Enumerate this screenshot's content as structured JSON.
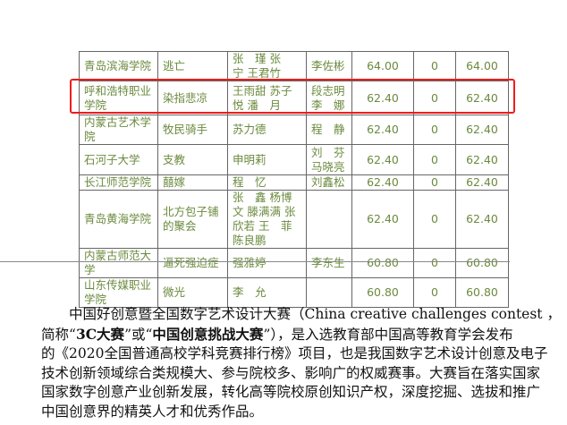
{
  "table": {
    "rows": [
      {
        "school": "青岛滨海学院",
        "work": "逃亡",
        "authors": "张　瑾 张　宁 王君竹",
        "advisor": "李佐彬",
        "score1": "64.00",
        "score2": "0",
        "total": "64.00",
        "h": 30
      },
      {
        "school": "呼和浩特职业学院",
        "work": "染指悲凉",
        "authors": "王雨甜 苏子悦 潘　月",
        "advisor": "段志明 李　娜",
        "score1": "62.40",
        "score2": "0",
        "total": "62.40",
        "h": 38,
        "highlighted": true
      },
      {
        "school": "内蒙古艺术学院",
        "work": "牧民骑手",
        "authors": "苏力德",
        "advisor": "程　静",
        "score1": "62.40",
        "score2": "0",
        "total": "62.40",
        "h": 16
      },
      {
        "school": "石河子大学",
        "work": "支教",
        "authors": "申明莉",
        "advisor": "刘　芬 马晓亮",
        "score1": "62.40",
        "score2": "0",
        "total": "62.40",
        "h": 34
      },
      {
        "school": "长江师范学院",
        "work": "囍嫁",
        "authors": "程　忆",
        "advisor": "刘鑫松",
        "score1": "62.40",
        "score2": "0",
        "total": "62.40",
        "h": 16
      },
      {
        "school": "青岛黄海学院",
        "work": "北方包子铺的聚会",
        "authors": "张　鑫 杨博文 滕满满 张欣若 王　菲 陈良鹏",
        "advisor": "",
        "score1": "62.40",
        "score2": "0",
        "total": "62.40",
        "h": 51
      },
      {
        "school": "内蒙古师范大学",
        "work": "逼死强迫症",
        "authors": "强雅婷",
        "advisor": "李东生",
        "score1": "60.80",
        "score2": "0",
        "total": "60.80",
        "h": 17
      },
      {
        "school": "山东传媒职业学院",
        "work": "微光",
        "authors": "李　允",
        "advisor": "",
        "score1": "60.80",
        "score2": "0",
        "total": "60.80",
        "h": 33
      }
    ],
    "highlight_color": "#ee1c1c",
    "text_color": "#6b8a3e"
  },
  "paragraph": {
    "line1": "　　中国好创意暨全国数字艺术设计大赛（China creative challenges contest ，",
    "line2_a": "简称“",
    "line2_b": "3C大赛",
    "line2_c": "”或“",
    "line2_d": "中国创意挑战大赛",
    "line2_e": "”），是入选教育部中国高等教育学会发布",
    "line3": "的《2020全国普通高校学科竞赛排行榜》项目，也是我国数字艺术设计创意及电子",
    "line4": "技术创新领域综合类规模大、参与院校多、影响广的权威赛事。大赛旨在落实国家",
    "line5": "国家数字创意产业创新发展，转化高等院校原创知识产权，深度挖掘、选拔和推广",
    "line6": "中国创意界的精英人才和优秀作品。"
  }
}
